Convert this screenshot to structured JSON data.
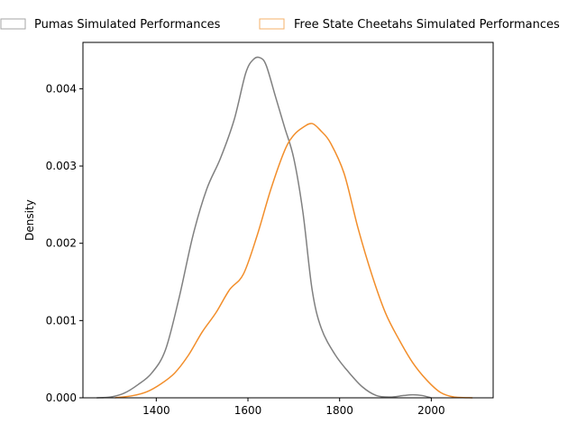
{
  "chart_data": {
    "type": "line",
    "title": "",
    "xlabel": "",
    "ylabel": "Density",
    "xlim": [
      1240,
      2135
    ],
    "ylim": [
      0,
      0.0046
    ],
    "xticks": [
      1400,
      1600,
      1800,
      2000
    ],
    "xtick_labels": [
      "1400",
      "1600",
      "1800",
      "2000"
    ],
    "yticks": [
      0,
      0.001,
      0.002,
      0.003,
      0.004
    ],
    "ytick_labels": [
      "0.000",
      "0.001",
      "0.002",
      "0.003",
      "0.004"
    ],
    "grid": false,
    "legend_position": "top",
    "series": [
      {
        "name": "Pumas Simulated Performances",
        "color": "#808080",
        "x": [
          1270,
          1300,
          1330,
          1360,
          1390,
          1420,
          1450,
          1480,
          1510,
          1540,
          1570,
          1595,
          1612,
          1627,
          1640,
          1660,
          1680,
          1700,
          1720,
          1740,
          1760,
          1790,
          1820,
          1850,
          1880,
          1910,
          1940,
          1960,
          1980,
          2000
        ],
        "y": [
          0.0,
          1e-05,
          6e-05,
          0.00017,
          0.00032,
          0.00062,
          0.0013,
          0.0021,
          0.0027,
          0.0031,
          0.0036,
          0.0042,
          0.00438,
          0.0044,
          0.0043,
          0.0039,
          0.0035,
          0.0031,
          0.0024,
          0.0014,
          0.0009,
          0.00056,
          0.00033,
          0.00014,
          3e-05,
          1e-05,
          3e-05,
          4e-05,
          3e-05,
          0.0
        ]
      },
      {
        "name": "Free State Cheetahs Simulated Performances",
        "color": "#f28e2b",
        "x": [
          1310,
          1350,
          1380,
          1410,
          1440,
          1470,
          1500,
          1530,
          1560,
          1590,
          1620,
          1650,
          1680,
          1700,
          1720,
          1740,
          1760,
          1780,
          1810,
          1840,
          1870,
          1900,
          1930,
          1960,
          1990,
          2020,
          2050,
          2090
        ],
        "y": [
          0.0,
          3e-05,
          8e-05,
          0.00018,
          0.00032,
          0.00055,
          0.00085,
          0.0011,
          0.0014,
          0.0016,
          0.0021,
          0.0027,
          0.0032,
          0.0034,
          0.0035,
          0.00355,
          0.00345,
          0.0033,
          0.0029,
          0.0022,
          0.0016,
          0.0011,
          0.00075,
          0.00045,
          0.00023,
          7e-05,
          1e-05,
          0.0
        ]
      }
    ]
  }
}
